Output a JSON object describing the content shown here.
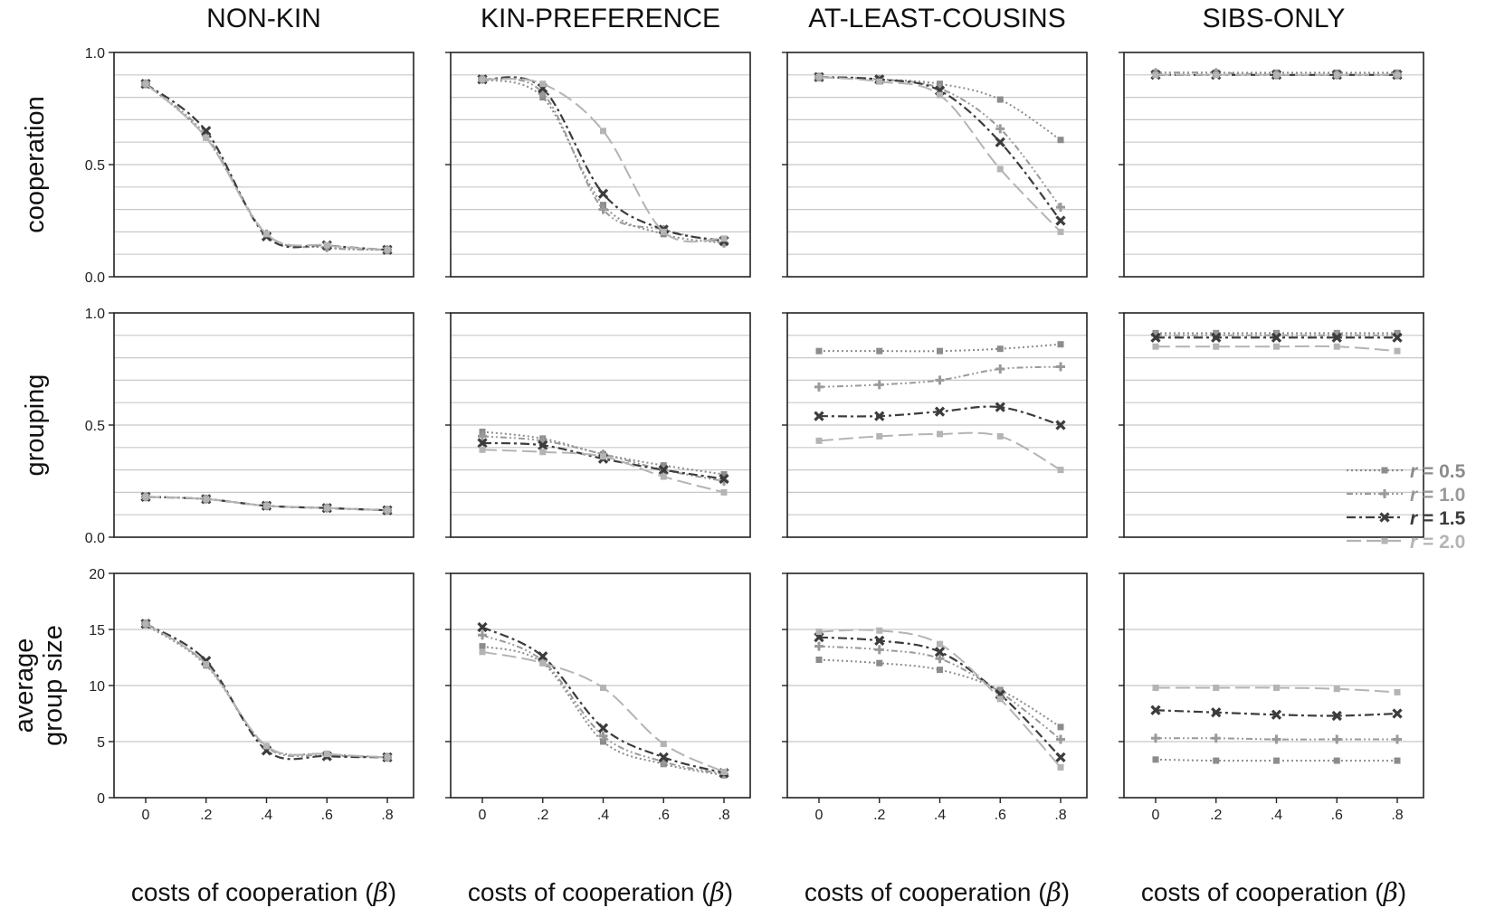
{
  "figure": {
    "columns": [
      "NON-KIN",
      "KIN-PREFERENCE",
      "AT-LEAST-COUSINS",
      "SIBS-ONLY"
    ],
    "rows": [
      {
        "label_lines": [
          "cooperation"
        ]
      },
      {
        "label_lines": [
          "grouping"
        ]
      },
      {
        "label_lines": [
          "average",
          "group size"
        ]
      }
    ],
    "xlabel_main": "costs of cooperation (",
    "xlabel_symbol": "β",
    "xlabel_close": ")"
  },
  "legend": {
    "entries": [
      {
        "series": "r05",
        "symbol": "r",
        "value": " = 0.5",
        "color": "#8c8c8c"
      },
      {
        "series": "r10",
        "symbol": "r",
        "value": " = 1.0",
        "color": "#9a9a9a"
      },
      {
        "series": "r15",
        "symbol": "r",
        "value": " = 1.5",
        "color": "#3c3c3c"
      },
      {
        "series": "r20",
        "symbol": "r",
        "value": " = 2.0",
        "color": "#b4b4b4"
      }
    ]
  },
  "chart_data": {
    "type": "line",
    "x": [
      0,
      0.2,
      0.4,
      0.6,
      0.8
    ],
    "xtick_labels": [
      "0",
      ".2",
      ".4",
      ".6",
      ".8"
    ],
    "series_styles": {
      "r05": {
        "color": "#8c8c8c",
        "dash": "dotted",
        "marker": "square"
      },
      "r10": {
        "color": "#9a9a9a",
        "dash": "dash-dot-dot",
        "marker": "plus"
      },
      "r15": {
        "color": "#3c3c3c",
        "dash": "dash-dot",
        "marker": "x"
      },
      "r20": {
        "color": "#b4b4b4",
        "dash": "long-dash",
        "marker": "square"
      }
    },
    "panels": [
      {
        "row": 0,
        "col": 0,
        "ylim": [
          0,
          1
        ],
        "yticks": [
          0,
          0.5,
          1
        ],
        "ytick_labels": [
          "0.0",
          "0.5",
          "1.0"
        ],
        "minor_grid": [
          0.1,
          0.2,
          0.3,
          0.4,
          0.5,
          0.6,
          0.7,
          0.8,
          0.9
        ],
        "series": [
          {
            "key": "r05",
            "values": [
              0.86,
              0.62,
              0.19,
              0.13,
              0.12
            ]
          },
          {
            "key": "r10",
            "values": [
              0.86,
              0.63,
              0.19,
              0.13,
              0.12
            ]
          },
          {
            "key": "r15",
            "values": [
              0.86,
              0.65,
              0.18,
              0.14,
              0.12
            ]
          },
          {
            "key": "r20",
            "values": [
              0.86,
              0.62,
              0.19,
              0.14,
              0.12
            ]
          }
        ]
      },
      {
        "row": 0,
        "col": 1,
        "ylim": [
          0,
          1
        ],
        "yticks": [
          0,
          0.5,
          1
        ],
        "ytick_labels": [
          "",
          "",
          ""
        ],
        "minor_grid": [
          0.1,
          0.2,
          0.3,
          0.4,
          0.5,
          0.6,
          0.7,
          0.8,
          0.9
        ],
        "series": [
          {
            "key": "r05",
            "values": [
              0.88,
              0.8,
              0.32,
              0.19,
              0.15
            ]
          },
          {
            "key": "r10",
            "values": [
              0.88,
              0.82,
              0.3,
              0.21,
              0.15
            ]
          },
          {
            "key": "r15",
            "values": [
              0.88,
              0.84,
              0.37,
              0.21,
              0.16
            ]
          },
          {
            "key": "r20",
            "values": [
              0.88,
              0.86,
              0.65,
              0.2,
              0.17
            ]
          }
        ]
      },
      {
        "row": 0,
        "col": 2,
        "ylim": [
          0,
          1
        ],
        "yticks": [
          0,
          0.5,
          1
        ],
        "ytick_labels": [
          "",
          "",
          ""
        ],
        "minor_grid": [
          0.1,
          0.2,
          0.3,
          0.4,
          0.5,
          0.6,
          0.7,
          0.8,
          0.9
        ],
        "series": [
          {
            "key": "r05",
            "values": [
              0.89,
              0.88,
              0.86,
              0.79,
              0.61
            ]
          },
          {
            "key": "r10",
            "values": [
              0.89,
              0.88,
              0.84,
              0.66,
              0.31
            ]
          },
          {
            "key": "r15",
            "values": [
              0.89,
              0.88,
              0.83,
              0.6,
              0.25
            ]
          },
          {
            "key": "r20",
            "values": [
              0.89,
              0.87,
              0.81,
              0.48,
              0.2
            ]
          }
        ]
      },
      {
        "row": 0,
        "col": 3,
        "ylim": [
          0,
          1
        ],
        "yticks": [
          0,
          0.5,
          1
        ],
        "ytick_labels": [
          "",
          "",
          ""
        ],
        "minor_grid": [
          0.1,
          0.2,
          0.3,
          0.4,
          0.5,
          0.6,
          0.7,
          0.8,
          0.9
        ],
        "series": [
          {
            "key": "r05",
            "values": [
              0.91,
              0.91,
              0.91,
              0.91,
              0.91
            ]
          },
          {
            "key": "r10",
            "values": [
              0.91,
              0.91,
              0.9,
              0.9,
              0.9
            ]
          },
          {
            "key": "r15",
            "values": [
              0.9,
              0.9,
              0.9,
              0.9,
              0.9
            ]
          },
          {
            "key": "r20",
            "values": [
              0.9,
              0.9,
              0.9,
              0.9,
              0.9
            ]
          }
        ]
      },
      {
        "row": 1,
        "col": 0,
        "ylim": [
          0,
          1
        ],
        "yticks": [
          0,
          0.5,
          1
        ],
        "ytick_labels": [
          "0.0",
          "0.5",
          "1.0"
        ],
        "minor_grid": [
          0.1,
          0.2,
          0.3,
          0.4,
          0.5,
          0.6,
          0.7,
          0.8,
          0.9
        ],
        "series": [
          {
            "key": "r05",
            "values": [
              0.18,
              0.17,
              0.14,
              0.13,
              0.12
            ]
          },
          {
            "key": "r10",
            "values": [
              0.18,
              0.17,
              0.14,
              0.13,
              0.12
            ]
          },
          {
            "key": "r15",
            "values": [
              0.18,
              0.17,
              0.14,
              0.13,
              0.12
            ]
          },
          {
            "key": "r20",
            "values": [
              0.18,
              0.17,
              0.14,
              0.13,
              0.12
            ]
          }
        ]
      },
      {
        "row": 1,
        "col": 1,
        "ylim": [
          0,
          1
        ],
        "yticks": [
          0,
          0.5,
          1
        ],
        "ytick_labels": [
          "",
          "",
          ""
        ],
        "minor_grid": [
          0.1,
          0.2,
          0.3,
          0.4,
          0.5,
          0.6,
          0.7,
          0.8,
          0.9
        ],
        "series": [
          {
            "key": "r05",
            "values": [
              0.47,
              0.44,
              0.37,
              0.32,
              0.28
            ]
          },
          {
            "key": "r10",
            "values": [
              0.45,
              0.43,
              0.37,
              0.3,
              0.25
            ]
          },
          {
            "key": "r15",
            "values": [
              0.42,
              0.41,
              0.35,
              0.3,
              0.26
            ]
          },
          {
            "key": "r20",
            "values": [
              0.39,
              0.38,
              0.36,
              0.27,
              0.2
            ]
          }
        ]
      },
      {
        "row": 1,
        "col": 2,
        "ylim": [
          0,
          1
        ],
        "yticks": [
          0,
          0.5,
          1
        ],
        "ytick_labels": [
          "",
          "",
          ""
        ],
        "minor_grid": [
          0.1,
          0.2,
          0.3,
          0.4,
          0.5,
          0.6,
          0.7,
          0.8,
          0.9
        ],
        "series": [
          {
            "key": "r05",
            "values": [
              0.83,
              0.83,
              0.83,
              0.84,
              0.86
            ]
          },
          {
            "key": "r10",
            "values": [
              0.67,
              0.68,
              0.7,
              0.75,
              0.76
            ]
          },
          {
            "key": "r15",
            "values": [
              0.54,
              0.54,
              0.56,
              0.58,
              0.5
            ]
          },
          {
            "key": "r20",
            "values": [
              0.43,
              0.45,
              0.46,
              0.45,
              0.3
            ]
          }
        ]
      },
      {
        "row": 1,
        "col": 3,
        "ylim": [
          0,
          1
        ],
        "yticks": [
          0,
          0.5,
          1
        ],
        "ytick_labels": [
          "",
          "",
          ""
        ],
        "minor_grid": [
          0.1,
          0.2,
          0.3,
          0.4,
          0.5,
          0.6,
          0.7,
          0.8,
          0.9
        ],
        "series": [
          {
            "key": "r05",
            "values": [
              0.91,
              0.91,
              0.91,
              0.91,
              0.91
            ]
          },
          {
            "key": "r10",
            "values": [
              0.9,
              0.9,
              0.9,
              0.9,
              0.9
            ]
          },
          {
            "key": "r15",
            "values": [
              0.89,
              0.89,
              0.89,
              0.89,
              0.89
            ]
          },
          {
            "key": "r20",
            "values": [
              0.85,
              0.85,
              0.85,
              0.85,
              0.83
            ]
          }
        ]
      },
      {
        "row": 2,
        "col": 0,
        "ylim": [
          0,
          20
        ],
        "yticks": [
          0,
          5,
          10,
          15,
          20
        ],
        "ytick_labels": [
          "0",
          "5",
          "10",
          "15",
          "20"
        ],
        "minor_grid": [
          5,
          10,
          15
        ],
        "series": [
          {
            "key": "r05",
            "values": [
              15.4,
              11.8,
              4.6,
              3.9,
              3.6
            ]
          },
          {
            "key": "r10",
            "values": [
              15.5,
              11.9,
              4.5,
              3.8,
              3.6
            ]
          },
          {
            "key": "r15",
            "values": [
              15.5,
              12.2,
              4.2,
              3.7,
              3.6
            ]
          },
          {
            "key": "r20",
            "values": [
              15.5,
              11.9,
              4.6,
              3.9,
              3.6
            ]
          }
        ]
      },
      {
        "row": 2,
        "col": 1,
        "ylim": [
          0,
          20
        ],
        "yticks": [
          0,
          5,
          10,
          15,
          20
        ],
        "ytick_labels": [
          "",
          "",
          "",
          "",
          ""
        ],
        "minor_grid": [
          5,
          10,
          15
        ],
        "series": [
          {
            "key": "r05",
            "values": [
              13.5,
              12.0,
              5.0,
              3.0,
              2.0
            ]
          },
          {
            "key": "r10",
            "values": [
              14.5,
              12.2,
              5.5,
              3.2,
              2.1
            ]
          },
          {
            "key": "r15",
            "values": [
              15.2,
              12.6,
              6.2,
              3.6,
              2.2
            ]
          },
          {
            "key": "r20",
            "values": [
              13.0,
              12.0,
              9.8,
              4.8,
              2.3
            ]
          }
        ]
      },
      {
        "row": 2,
        "col": 2,
        "ylim": [
          0,
          20
        ],
        "yticks": [
          0,
          5,
          10,
          15,
          20
        ],
        "ytick_labels": [
          "",
          "",
          "",
          "",
          ""
        ],
        "minor_grid": [
          5,
          10,
          15
        ],
        "series": [
          {
            "key": "r05",
            "values": [
              12.3,
              12.0,
              11.4,
              9.6,
              6.3
            ]
          },
          {
            "key": "r10",
            "values": [
              13.5,
              13.2,
              12.4,
              9.4,
              5.2
            ]
          },
          {
            "key": "r15",
            "values": [
              14.3,
              14.0,
              13.0,
              9.2,
              3.6
            ]
          },
          {
            "key": "r20",
            "values": [
              14.8,
              14.9,
              13.7,
              8.8,
              2.7
            ]
          }
        ]
      },
      {
        "row": 2,
        "col": 3,
        "ylim": [
          0,
          20
        ],
        "yticks": [
          0,
          5,
          10,
          15,
          20
        ],
        "ytick_labels": [
          "",
          "",
          "",
          "",
          ""
        ],
        "minor_grid": [
          5,
          10,
          15
        ],
        "series": [
          {
            "key": "r05",
            "values": [
              3.4,
              3.3,
              3.3,
              3.3,
              3.3
            ]
          },
          {
            "key": "r10",
            "values": [
              5.3,
              5.3,
              5.2,
              5.2,
              5.2
            ]
          },
          {
            "key": "r15",
            "values": [
              7.8,
              7.6,
              7.4,
              7.3,
              7.5
            ]
          },
          {
            "key": "r20",
            "values": [
              9.8,
              9.8,
              9.8,
              9.7,
              9.4
            ]
          }
        ]
      }
    ]
  }
}
